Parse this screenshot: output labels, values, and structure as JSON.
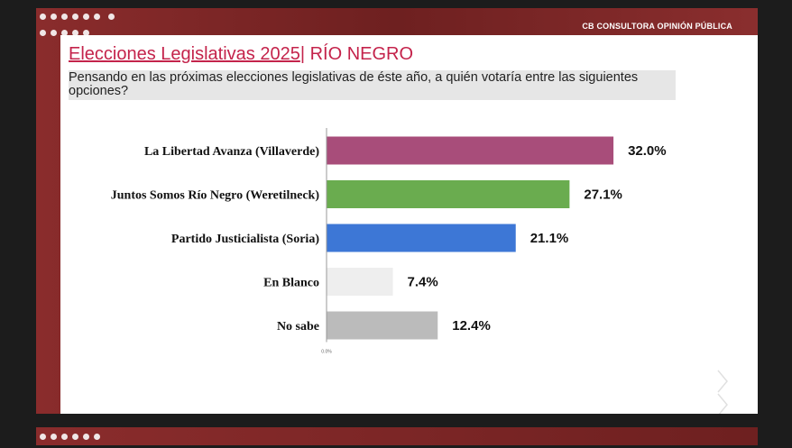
{
  "brand": "CB CONSULTORA OPINIÓN PÚBLICA",
  "title": {
    "main": "Elecciones Legislativas 2025",
    "separator": "|",
    "region": " RÍO NEGRO"
  },
  "question": "Pensando en las próximas elecciones legislativas de éste año, a quién votaría entre las siguientes opciones?",
  "chart_data": {
    "type": "bar",
    "orientation": "horizontal",
    "categories": [
      "La Libertad Avanza (Villaverde)",
      "Juntos Somos Río Negro (Weretilneck)",
      "Partido Justicialista (Soria)",
      "En Blanco",
      "No sabe"
    ],
    "values": [
      32.0,
      27.1,
      21.1,
      7.4,
      12.4
    ],
    "value_labels": [
      "32.0%",
      "27.1%",
      "21.1%",
      "7.4%",
      "12.4%"
    ],
    "colors": [
      "#a84d7a",
      "#6aac4f",
      "#3d77d6",
      "#eeeeee",
      "#bbbbbb"
    ],
    "axis_min_label": "0.0%",
    "xlim": [
      0,
      35
    ],
    "grid": false,
    "title": "",
    "xlabel": "",
    "ylabel": ""
  }
}
